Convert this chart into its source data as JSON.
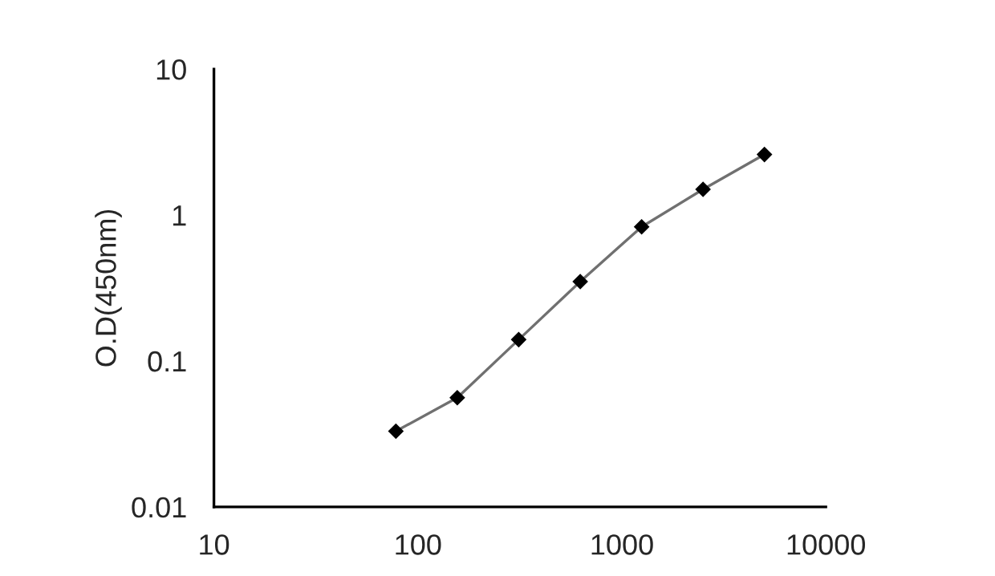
{
  "chart_data": {
    "type": "line",
    "ylabel": "O.D(450nm)",
    "log": "xy",
    "marker": "diamond",
    "line_style": "solid",
    "grid": false,
    "legend": false,
    "x": [
      78,
      156,
      312,
      625,
      1250,
      2500,
      5000
    ],
    "series": [
      {
        "color": "#707070",
        "values": [
          0.033,
          0.056,
          0.14,
          0.35,
          0.83,
          1.5,
          2.6
        ]
      }
    ],
    "xlim": [
      10,
      10000
    ],
    "xticks": [
      10,
      100,
      1000,
      10000
    ],
    "ylim": [
      0.01,
      10
    ],
    "yticks": [
      0.01,
      0.1,
      1,
      10
    ]
  }
}
